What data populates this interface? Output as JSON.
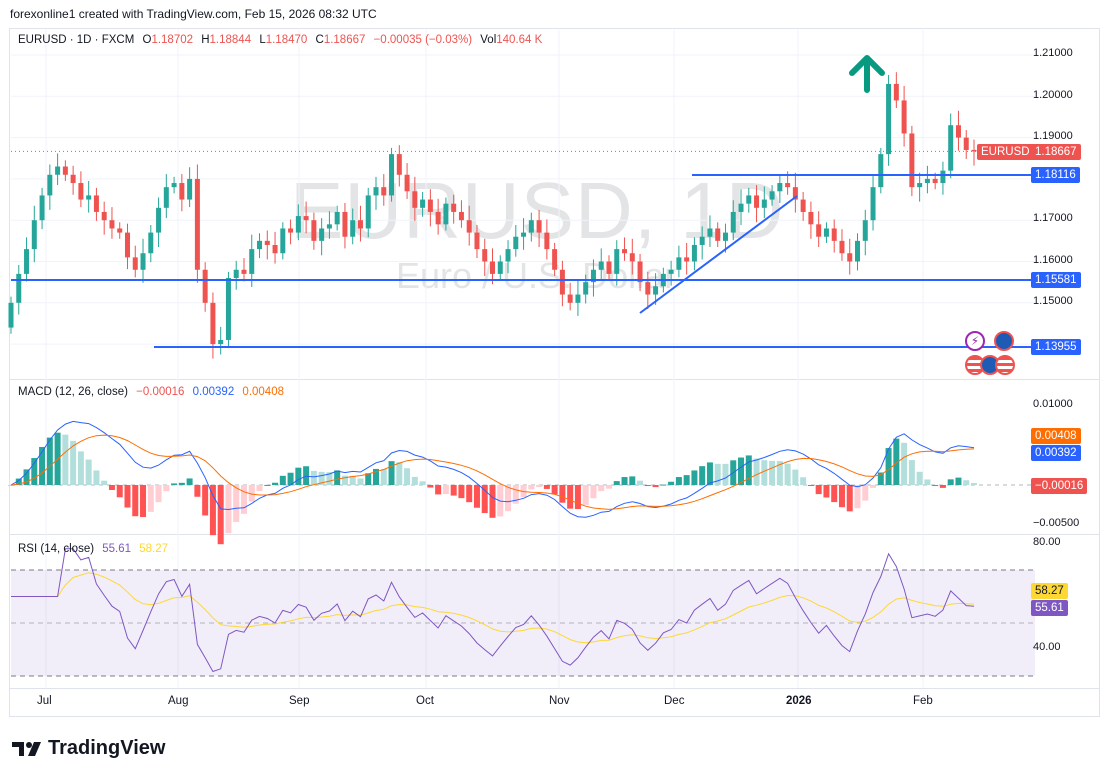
{
  "header": {
    "credit": "forexonline1 created with TradingView.com, Feb 15, 2026 08:32 UTC"
  },
  "legend": {
    "symbol": "EURUSD · 1D · FXCM",
    "open_label": "O",
    "open": "1.18702",
    "high_label": "H",
    "high": "1.18844",
    "low_label": "L",
    "low": "1.18470",
    "close_label": "C",
    "close": "1.18667",
    "change": "−0.00035 (−0.03%)",
    "vol_label": "Vol",
    "vol": "140.64 K"
  },
  "watermark": {
    "title": "EURUSD, 1D",
    "subtitle": "Euro / U.S. Dollar"
  },
  "price_axis": {
    "ticks": [
      "1.21000",
      "1.20000",
      "1.19000",
      "1.17000",
      "1.16000",
      "1.15000"
    ],
    "symbol_tag": "EURUSD",
    "last_price": "1.18667",
    "levels": [
      "1.18116",
      "1.15581",
      "1.13955"
    ]
  },
  "macd": {
    "title": "MACD (12, 26, close)",
    "hist": "−0.00016",
    "macd": "0.00392",
    "signal": "0.00408",
    "ticks": [
      "0.01000",
      "−0.00500"
    ],
    "tags": {
      "signal": "0.00408",
      "macd": "0.00392",
      "hist": "−0.00016"
    }
  },
  "rsi": {
    "title": "RSI (14, close)",
    "rsi": "55.61",
    "ma": "58.27",
    "ticks": [
      "80.00",
      "40.00"
    ],
    "tags": {
      "ma": "58.27",
      "rsi": "55.61"
    }
  },
  "time_axis": [
    "Jul",
    "Aug",
    "Sep",
    "Oct",
    "Nov",
    "Dec",
    "2026",
    "Feb"
  ],
  "branding": {
    "logo_text": "TradingView"
  },
  "colors": {
    "up": "#26a69a",
    "down": "#ef5350",
    "level_line": "#2962ff",
    "macd_line": "#2962ff",
    "signal_line": "#ff6d00",
    "rsi_line": "#7e57c2",
    "rsi_ma": "#fdd835",
    "arrow": "#089981"
  },
  "chart_data": [
    {
      "type": "candlestick",
      "title": "EURUSD · 1D · FXCM",
      "xlabel": "",
      "ylabel": "Price",
      "ylim": [
        1.135,
        1.213
      ],
      "x_ticks": [
        "Jul",
        "Aug",
        "Sep",
        "Oct",
        "Nov",
        "Dec",
        "2026",
        "Feb"
      ],
      "y_ticks": [
        1.15,
        1.16,
        1.17,
        1.19,
        1.2,
        1.21
      ],
      "horizontal_levels": [
        1.18116,
        1.15581,
        1.13955
      ],
      "trendline": {
        "from": [
          1.1475,
          "late Nov"
        ],
        "to": [
          1.1755,
          "late Dec"
        ]
      },
      "annotations": [
        "green up arrow above late-January high"
      ],
      "last": {
        "open": 1.18702,
        "high": 1.18844,
        "low": 1.1847,
        "close": 1.18667
      },
      "series_close_approx": [
        1.15,
        1.157,
        1.163,
        1.17,
        1.176,
        1.181,
        1.183,
        1.181,
        1.179,
        1.175,
        1.176,
        1.172,
        1.17,
        1.168,
        1.167,
        1.161,
        1.158,
        1.162,
        1.167,
        1.173,
        1.178,
        1.179,
        1.175,
        1.18,
        1.158,
        1.15,
        1.14,
        1.141,
        1.156,
        1.158,
        1.157,
        1.163,
        1.165,
        1.164,
        1.162,
        1.168,
        1.167,
        1.171,
        1.17,
        1.165,
        1.168,
        1.169,
        1.172,
        1.166,
        1.17,
        1.168,
        1.176,
        1.178,
        1.176,
        1.186,
        1.181,
        1.177,
        1.173,
        1.175,
        1.172,
        1.169,
        1.174,
        1.172,
        1.17,
        1.167,
        1.163,
        1.16,
        1.157,
        1.16,
        1.163,
        1.166,
        1.167,
        1.17,
        1.167,
        1.163,
        1.158,
        1.152,
        1.15,
        1.152,
        1.155,
        1.158,
        1.16,
        1.157,
        1.163,
        1.162,
        1.16,
        1.155,
        1.152,
        1.154,
        1.157,
        1.158,
        1.161,
        1.16,
        1.164,
        1.166,
        1.168,
        1.165,
        1.167,
        1.172,
        1.174,
        1.176,
        1.173,
        1.175,
        1.177,
        1.179,
        1.178,
        1.175,
        1.172,
        1.169,
        1.166,
        1.168,
        1.165,
        1.162,
        1.16,
        1.165,
        1.17,
        1.178,
        1.186,
        1.203,
        1.199,
        1.191,
        1.178,
        1.179,
        1.18,
        1.179,
        1.182,
        1.193,
        1.19,
        1.187,
        1.1867
      ]
    },
    {
      "type": "line+bar",
      "title": "MACD (12, 26, close)",
      "ylim": [
        -0.0065,
        0.0125
      ],
      "y_ticks": [
        0.01,
        -0.005
      ],
      "last": {
        "histogram": -0.00016,
        "macd": 0.00392,
        "signal": 0.00408
      }
    },
    {
      "type": "line",
      "title": "RSI (14, close)",
      "ylim": [
        25,
        82
      ],
      "y_ticks": [
        80,
        40
      ],
      "bands": [
        70,
        50,
        30
      ],
      "last": {
        "rsi": 55.61,
        "rsi_ma": 58.27
      }
    }
  ]
}
